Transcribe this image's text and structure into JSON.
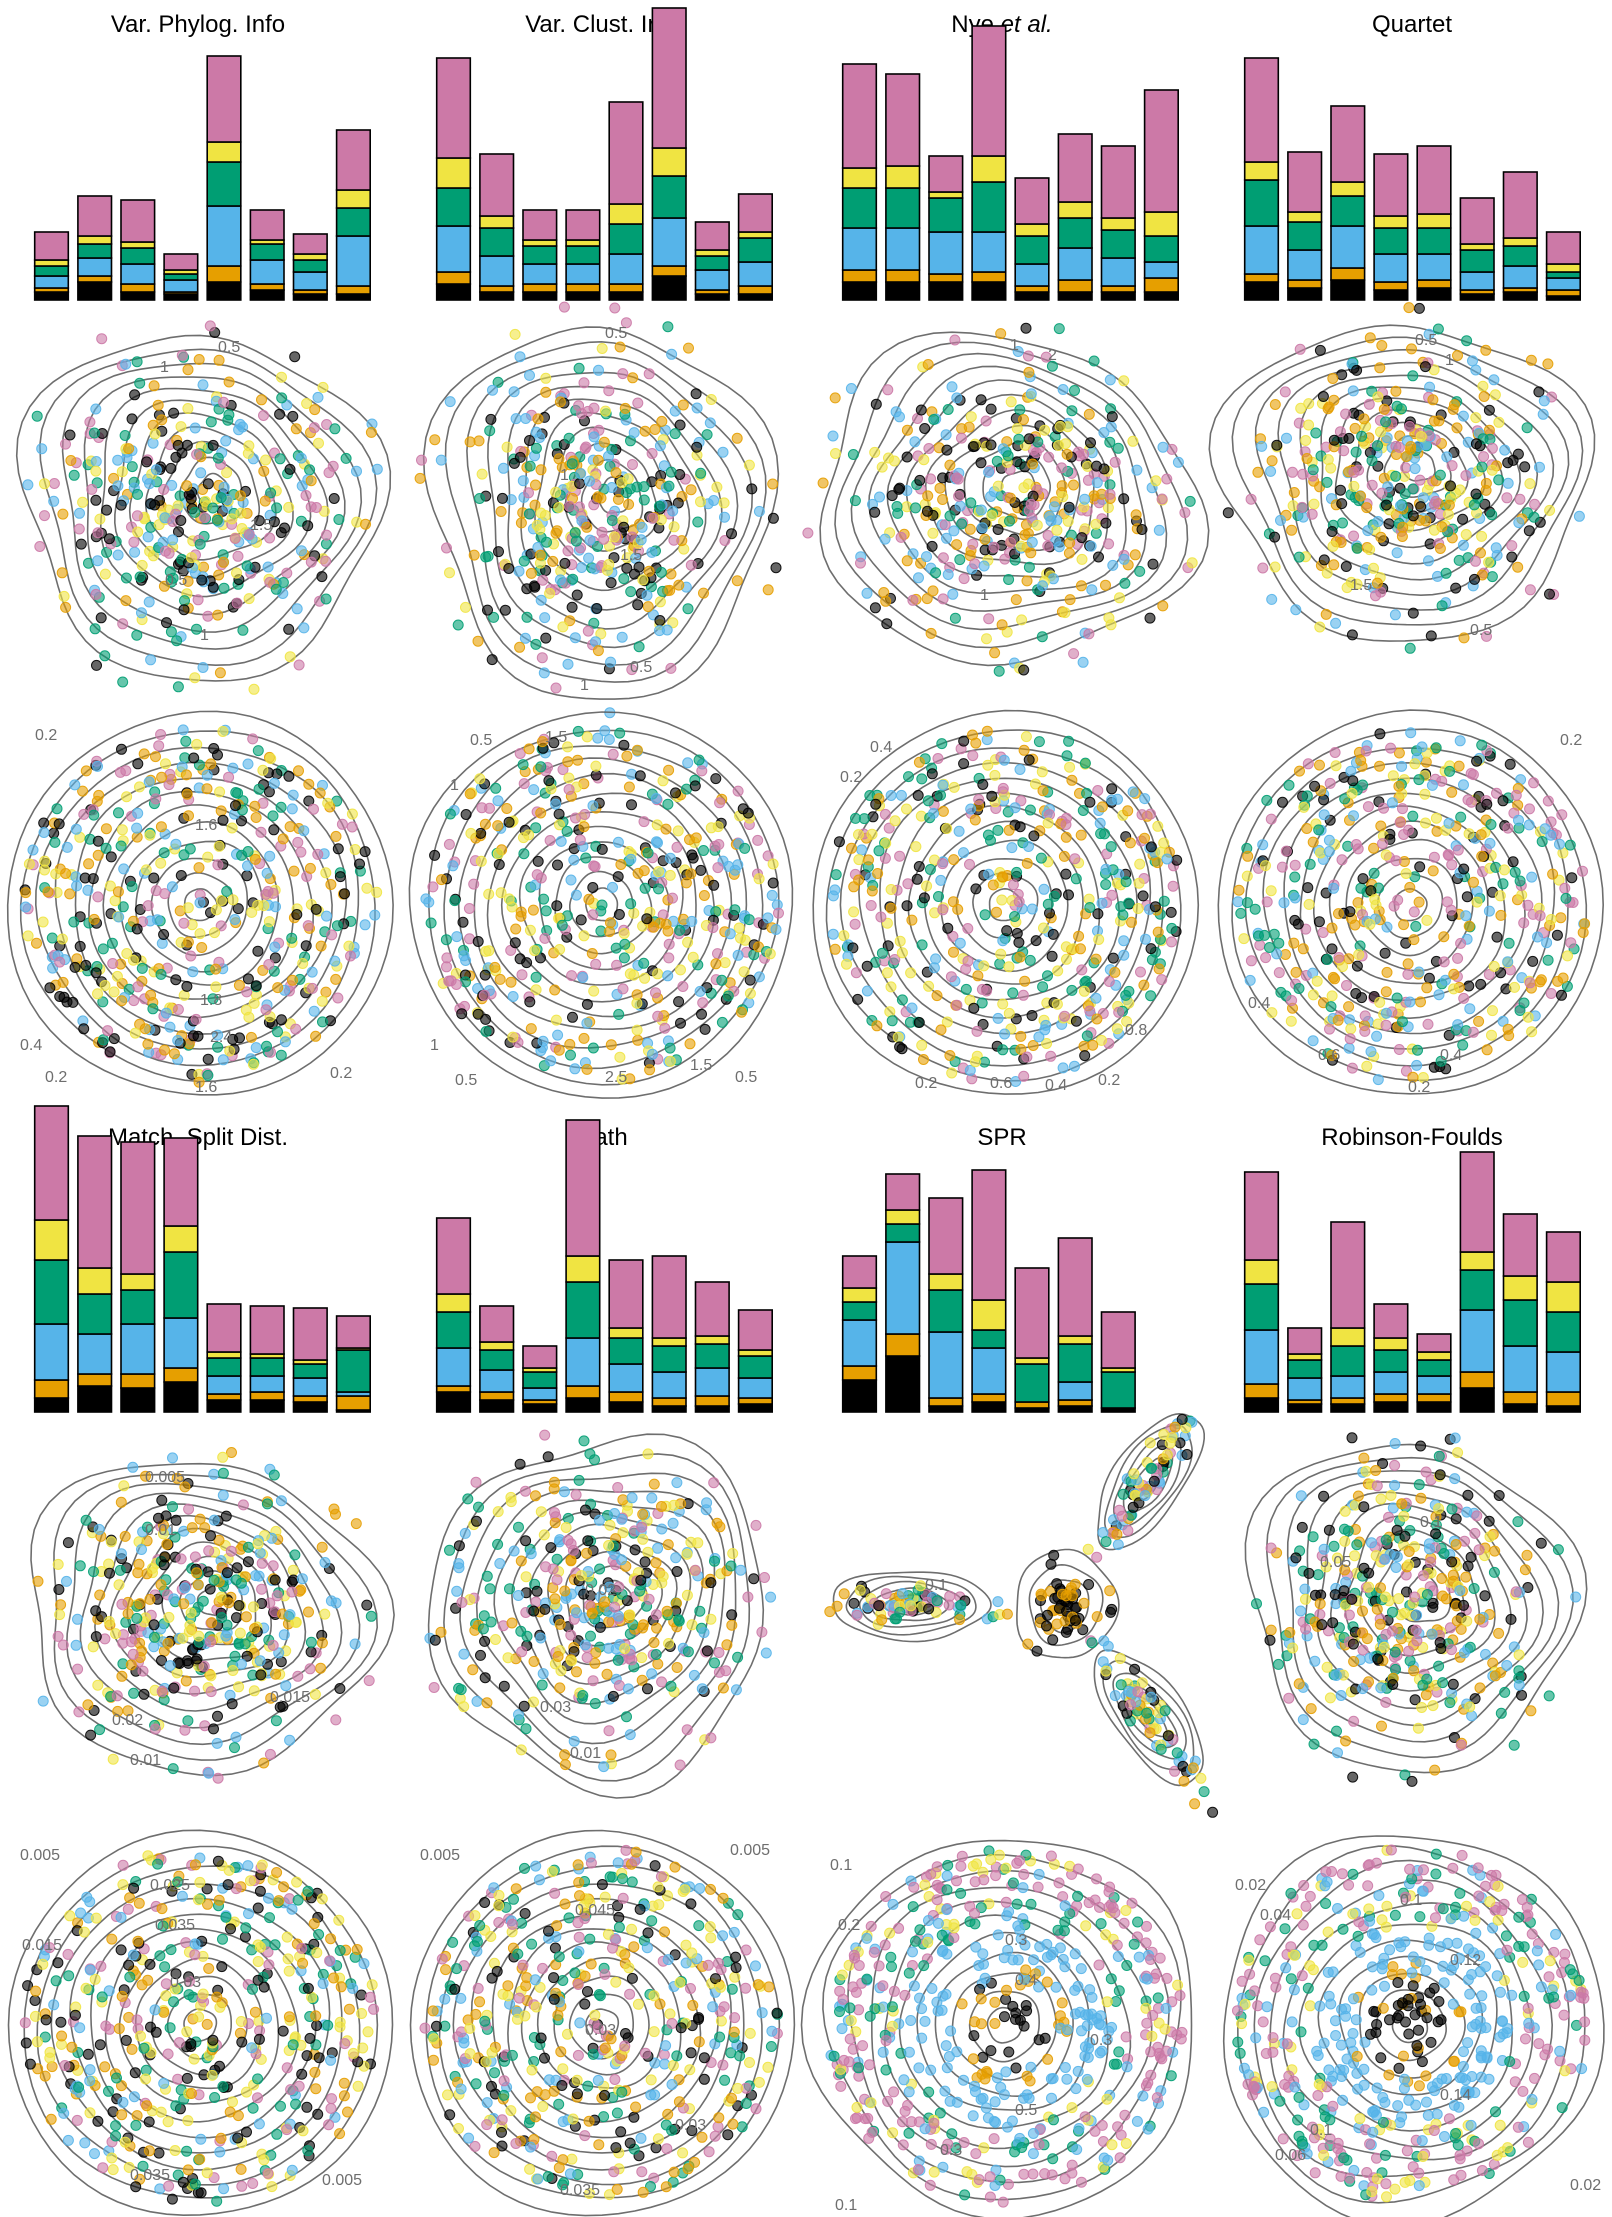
{
  "colors": {
    "black": "#000000",
    "orange": "#E69F00",
    "skyblue": "#56B4E9",
    "green": "#009E73",
    "yellow": "#F0E442",
    "pink": "#CC79A7",
    "contour": "#555555"
  },
  "layer_order": [
    "black",
    "orange",
    "skyblue",
    "green",
    "yellow",
    "pink"
  ],
  "chart_data": [
    {
      "type": "bar",
      "stacked": true,
      "title": "Var. Phylog. Info",
      "series_keys": [
        "black",
        "orange",
        "skyblue",
        "green",
        "yellow",
        "pink"
      ],
      "bars": [
        [
          8,
          4,
          12,
          10,
          6,
          28
        ],
        [
          18,
          6,
          18,
          14,
          8,
          40
        ],
        [
          8,
          8,
          20,
          16,
          6,
          42
        ],
        [
          6,
          2,
          12,
          6,
          4,
          16
        ],
        [
          18,
          16,
          60,
          44,
          20,
          86
        ],
        [
          10,
          6,
          24,
          16,
          4,
          30
        ],
        [
          6,
          4,
          18,
          12,
          6,
          20
        ],
        [
          6,
          8,
          50,
          28,
          18,
          60
        ]
      ]
    },
    {
      "type": "bar",
      "stacked": true,
      "title": "Var. Clust. Info",
      "series_keys": [
        "black",
        "orange",
        "skyblue",
        "green",
        "yellow",
        "pink"
      ],
      "bars": [
        [
          16,
          12,
          46,
          38,
          30,
          100
        ],
        [
          8,
          6,
          30,
          28,
          12,
          62
        ],
        [
          8,
          8,
          20,
          18,
          6,
          30
        ],
        [
          8,
          8,
          20,
          18,
          6,
          30
        ],
        [
          8,
          8,
          30,
          30,
          20,
          102
        ],
        [
          24,
          10,
          48,
          42,
          28,
          140
        ],
        [
          6,
          4,
          20,
          14,
          6,
          28
        ],
        [
          6,
          8,
          24,
          24,
          6,
          38
        ]
      ]
    },
    {
      "type": "bar",
      "stacked": true,
      "title": "Nye et al.",
      "series_keys": [
        "black",
        "orange",
        "skyblue",
        "green",
        "yellow",
        "pink"
      ],
      "bars": [
        [
          18,
          12,
          42,
          40,
          20,
          104
        ],
        [
          18,
          12,
          42,
          40,
          22,
          92
        ],
        [
          18,
          8,
          42,
          34,
          6,
          36
        ],
        [
          18,
          10,
          40,
          50,
          26,
          130
        ],
        [
          8,
          6,
          22,
          28,
          12,
          46
        ],
        [
          8,
          12,
          32,
          30,
          16,
          68
        ],
        [
          8,
          6,
          28,
          28,
          12,
          72
        ],
        [
          8,
          14,
          16,
          26,
          24,
          122
        ]
      ]
    },
    {
      "type": "bar",
      "stacked": true,
      "title": "Quartet",
      "series_keys": [
        "black",
        "orange",
        "skyblue",
        "green",
        "yellow",
        "pink"
      ],
      "bars": [
        [
          18,
          8,
          48,
          46,
          18,
          104
        ],
        [
          12,
          8,
          30,
          28,
          10,
          60
        ],
        [
          20,
          12,
          42,
          30,
          14,
          76
        ],
        [
          10,
          8,
          28,
          26,
          12,
          62
        ],
        [
          12,
          8,
          26,
          26,
          14,
          68
        ],
        [
          6,
          4,
          18,
          22,
          6,
          46
        ],
        [
          8,
          4,
          22,
          20,
          8,
          66
        ],
        [
          4,
          6,
          12,
          6,
          8,
          32
        ]
      ]
    },
    {
      "type": "bar",
      "stacked": true,
      "title": "Match. Split Dist.",
      "series_keys": [
        "black",
        "orange",
        "skyblue",
        "green",
        "yellow",
        "pink"
      ],
      "bars": [
        [
          14,
          18,
          56,
          64,
          40,
          114
        ],
        [
          26,
          12,
          40,
          40,
          26,
          132
        ],
        [
          24,
          14,
          50,
          34,
          16,
          132
        ],
        [
          30,
          14,
          50,
          66,
          26,
          88
        ],
        [
          12,
          6,
          18,
          18,
          6,
          48
        ],
        [
          12,
          8,
          16,
          18,
          4,
          48
        ],
        [
          10,
          6,
          18,
          14,
          4,
          52
        ],
        [
          2,
          14,
          4,
          42,
          2,
          32
        ]
      ]
    },
    {
      "type": "bar",
      "stacked": true,
      "title": "Path",
      "series_keys": [
        "black",
        "orange",
        "skyblue",
        "green",
        "yellow",
        "pink"
      ],
      "bars": [
        [
          20,
          6,
          38,
          36,
          18,
          76
        ],
        [
          12,
          8,
          22,
          20,
          8,
          36
        ],
        [
          8,
          4,
          12,
          16,
          4,
          22
        ],
        [
          14,
          12,
          48,
          56,
          26,
          136
        ],
        [
          10,
          10,
          28,
          26,
          10,
          68
        ],
        [
          6,
          8,
          26,
          26,
          8,
          82
        ],
        [
          6,
          10,
          28,
          24,
          8,
          54
        ],
        [
          8,
          6,
          20,
          22,
          6,
          40
        ]
      ]
    },
    {
      "type": "bar",
      "stacked": true,
      "title": "SPR",
      "series_keys": [
        "black",
        "orange",
        "skyblue",
        "green",
        "yellow",
        "pink"
      ],
      "bars": [
        [
          32,
          14,
          46,
          18,
          14,
          32
        ],
        [
          56,
          22,
          92,
          18,
          14,
          36
        ],
        [
          6,
          8,
          66,
          42,
          16,
          76
        ],
        [
          10,
          8,
          46,
          18,
          30,
          130
        ],
        [
          4,
          6,
          0,
          38,
          6,
          90
        ],
        [
          6,
          6,
          18,
          38,
          8,
          98
        ],
        [
          4,
          0,
          0,
          36,
          4,
          56
        ],
        [
          0,
          0,
          0,
          0,
          0,
          0
        ]
      ]
    },
    {
      "type": "bar",
      "stacked": true,
      "title": "Robinson-Foulds",
      "series_keys": [
        "black",
        "orange",
        "skyblue",
        "green",
        "yellow",
        "pink"
      ],
      "bars": [
        [
          14,
          14,
          54,
          46,
          24,
          88
        ],
        [
          8,
          4,
          22,
          18,
          6,
          26
        ],
        [
          8,
          6,
          22,
          30,
          18,
          106
        ],
        [
          10,
          8,
          22,
          22,
          12,
          34
        ],
        [
          10,
          8,
          18,
          16,
          8,
          18
        ],
        [
          24,
          16,
          62,
          40,
          18,
          100
        ],
        [
          8,
          12,
          46,
          46,
          24,
          62
        ],
        [
          6,
          14,
          40,
          40,
          30,
          50
        ]
      ]
    }
  ],
  "contour_labels": {
    "a1": "0.5",
    "a2": "1",
    "a3": "1.5",
    "a4": "0.5",
    "a5": "1",
    "b1": "0.5",
    "b2": "1",
    "b3": "1.5",
    "b4": "0.5",
    "b5": "1",
    "c1": "1",
    "c2": "2",
    "c3": "1",
    "d1": "0.5",
    "d2": "1",
    "d3": "1.5",
    "d4": "0.5",
    "e1": "0.2",
    "e2": "1.6",
    "e3": "1.8",
    "e4": "2.4",
    "e5": "0.4",
    "e6": "0.2",
    "e7": "1.6",
    "e8": "0.2",
    "f1": "0.5",
    "f2": "1",
    "f3": "1.5",
    "f4": "2.5",
    "f5": "1",
    "f6": "0.5",
    "f7": "1.5",
    "f8": "0.5",
    "g1": "0.2",
    "g2": "0.4",
    "g3": "0.2",
    "g4": "0.6",
    "g5": "0.4",
    "g6": "0.2",
    "g7": "0.8",
    "h1": "0.2",
    "h2": "0.4",
    "h3": "0.6",
    "h4": "0.2",
    "h5": "0.4",
    "i1": "0.005",
    "i2": "0.01",
    "i3": "0.015",
    "i4": "0.02",
    "i5": "0.01",
    "j1": "0.03",
    "j2": "0.01",
    "j3": "0.02",
    "k1": "0.1",
    "l1": "0.05",
    "l2": "0.1",
    "m1": "0.005",
    "m2": "0.015",
    "m3": "0.025",
    "m4": "0.03",
    "m5": "0.035",
    "m6": "0.005",
    "m7": "0.035",
    "n1": "0.005",
    "n2": "0.045",
    "n3": "0.03",
    "n4": "0.035",
    "n5": "0.03",
    "n6": "0.005",
    "o1": "0.1",
    "o2": "0.2",
    "o3": "0.3",
    "o4": "0.4",
    "o5": "0.3",
    "o6": "0.5",
    "o7": "0.3",
    "o8": "0.1",
    "p1": "0.02",
    "p2": "0.04",
    "p3": "0.1",
    "p4": "0.12",
    "p5": "0.14",
    "p6": "0.1",
    "p7": "0.06",
    "p8": "0.02"
  }
}
